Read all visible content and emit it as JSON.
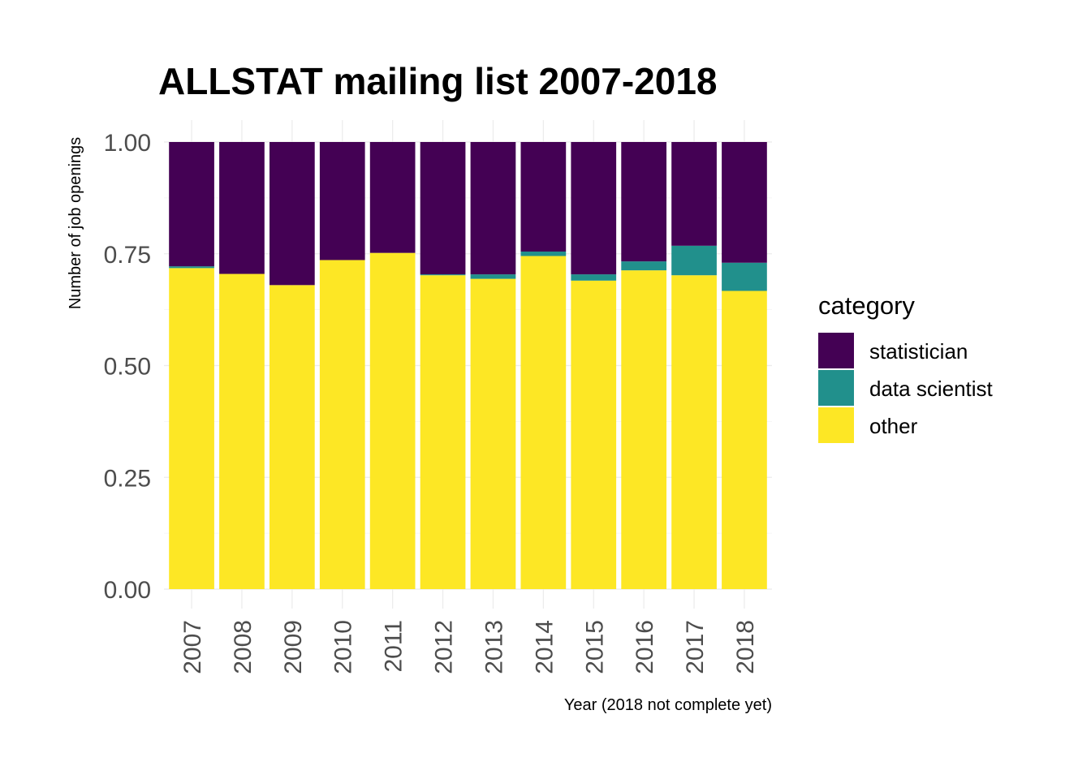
{
  "chart_data": {
    "type": "bar",
    "stacked": true,
    "title": "ALLSTAT mailing list 2007-2018",
    "xlabel": "Year (2018 not complete yet)",
    "ylabel": "Number of job openings",
    "ylim": [
      0,
      1
    ],
    "yticks": [
      "0.00",
      "0.25",
      "0.50",
      "0.75",
      "1.00"
    ],
    "ytick_values": [
      0,
      0.25,
      0.5,
      0.75,
      1.0
    ],
    "grid": true,
    "categories": [
      "2007",
      "2008",
      "2009",
      "2010",
      "2011",
      "2012",
      "2013",
      "2014",
      "2015",
      "2016",
      "2017",
      "2018"
    ],
    "legend": {
      "title": "category",
      "placement": "right"
    },
    "series": [
      {
        "name": "other",
        "color": "#fde725",
        "values": [
          0.718,
          0.705,
          0.68,
          0.736,
          0.752,
          0.702,
          0.694,
          0.745,
          0.69,
          0.713,
          0.702,
          0.667
        ]
      },
      {
        "name": "data scientist",
        "color": "#21908c",
        "values": [
          0.004,
          0.0,
          0.0,
          0.0,
          0.0,
          0.002,
          0.01,
          0.01,
          0.014,
          0.02,
          0.066,
          0.063
        ]
      },
      {
        "name": "statistician",
        "color": "#440154",
        "values": [
          0.278,
          0.295,
          0.32,
          0.264,
          0.248,
          0.296,
          0.296,
          0.245,
          0.296,
          0.267,
          0.232,
          0.27
        ]
      }
    ],
    "legend_order": [
      "statistician",
      "data scientist",
      "other"
    ]
  }
}
